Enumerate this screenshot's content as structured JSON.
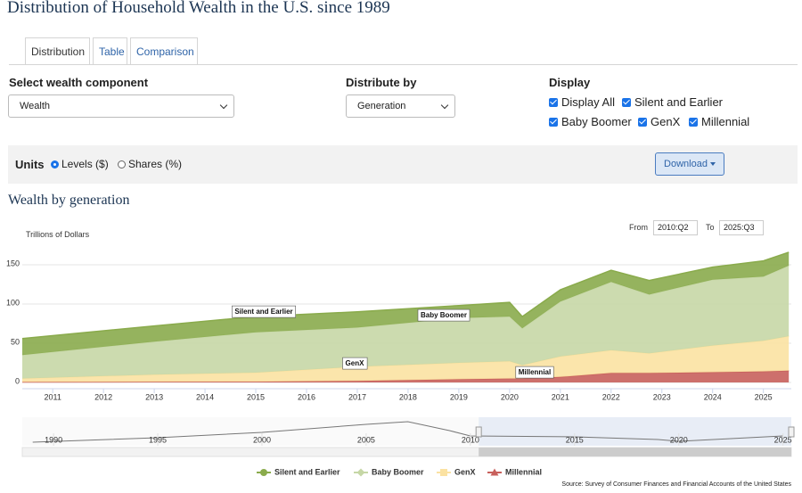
{
  "header": {
    "title": "Distribution of Household Wealth in the U.S. since 1989"
  },
  "tabs": [
    "Distribution",
    "Table",
    "Comparison"
  ],
  "controls": {
    "wealth_component": {
      "label": "Select wealth component",
      "value": "Wealth"
    },
    "distribute_by": {
      "label": "Distribute by",
      "value": "Generation"
    },
    "display": {
      "label": "Display",
      "options": [
        "Display All",
        "Silent and Earlier",
        "Baby Boomer",
        "GenX",
        "Millennial"
      ]
    }
  },
  "units": {
    "label": "Units",
    "options": [
      "Levels ($)",
      "Shares (%)"
    ]
  },
  "download": "Download",
  "range": {
    "from_label": "From",
    "from": "2010:Q2",
    "to_label": "To",
    "to": "2025:Q3"
  },
  "source": "Source: Survey of Consumer Finances and Financial Accounts of the United States",
  "chart_data": [
    {
      "type": "area",
      "stacked": true,
      "title": "Wealth by generation",
      "y_label": "Trillions of Dollars",
      "x": [
        2010.4,
        2013,
        2015,
        2017,
        2019,
        2020,
        2020.25,
        2021,
        2022,
        2022.75,
        2024,
        2025,
        2025.5
      ],
      "series": [
        {
          "name": "Silent and Earlier",
          "color": "#8aab4c",
          "values": [
            21,
            20,
            20,
            20,
            16,
            18,
            15,
            15,
            15,
            18,
            16,
            20,
            17
          ]
        },
        {
          "name": "Baby Boomer",
          "color": "#c6d7a6",
          "values": [
            30,
            42,
            51.5,
            50,
            57,
            57,
            47,
            70,
            87,
            75,
            84,
            82,
            90
          ]
        },
        {
          "name": "GenX",
          "color": "#fbe2a2",
          "values": [
            4.5,
            9.2,
            11.5,
            18,
            21,
            22,
            17,
            26,
            29,
            25,
            34,
            39,
            44
          ]
        },
        {
          "name": "Millennial",
          "color": "#c8605c",
          "values": [
            0.5,
            0.8,
            1,
            2,
            4,
            5,
            5,
            7,
            12,
            12,
            13,
            14,
            15
          ]
        }
      ],
      "xlim": [
        2010.4,
        2025.55
      ],
      "xticks": [
        2011,
        2012,
        2013,
        2014,
        2015,
        2016,
        2017,
        2018,
        2019,
        2020,
        2021,
        2022,
        2023,
        2024,
        2025
      ],
      "ylim": [
        -8,
        175
      ],
      "yticks": [
        0,
        50,
        100,
        150
      ],
      "grid": true
    },
    {
      "type": "line",
      "color": "#777777",
      "x": [
        1989,
        1995,
        2000,
        2005,
        2007,
        2009,
        2010,
        2015,
        2019,
        2020,
        2025
      ],
      "values": [
        4,
        9,
        15,
        24,
        27,
        17,
        11,
        10,
        7,
        5,
        11
      ],
      "xlim": [
        1988.5,
        2025.4
      ],
      "xticks": [
        1990,
        1995,
        2000,
        2005,
        2010,
        2015,
        2020,
        2025
      ],
      "ylim": [
        0,
        32
      ]
    }
  ]
}
